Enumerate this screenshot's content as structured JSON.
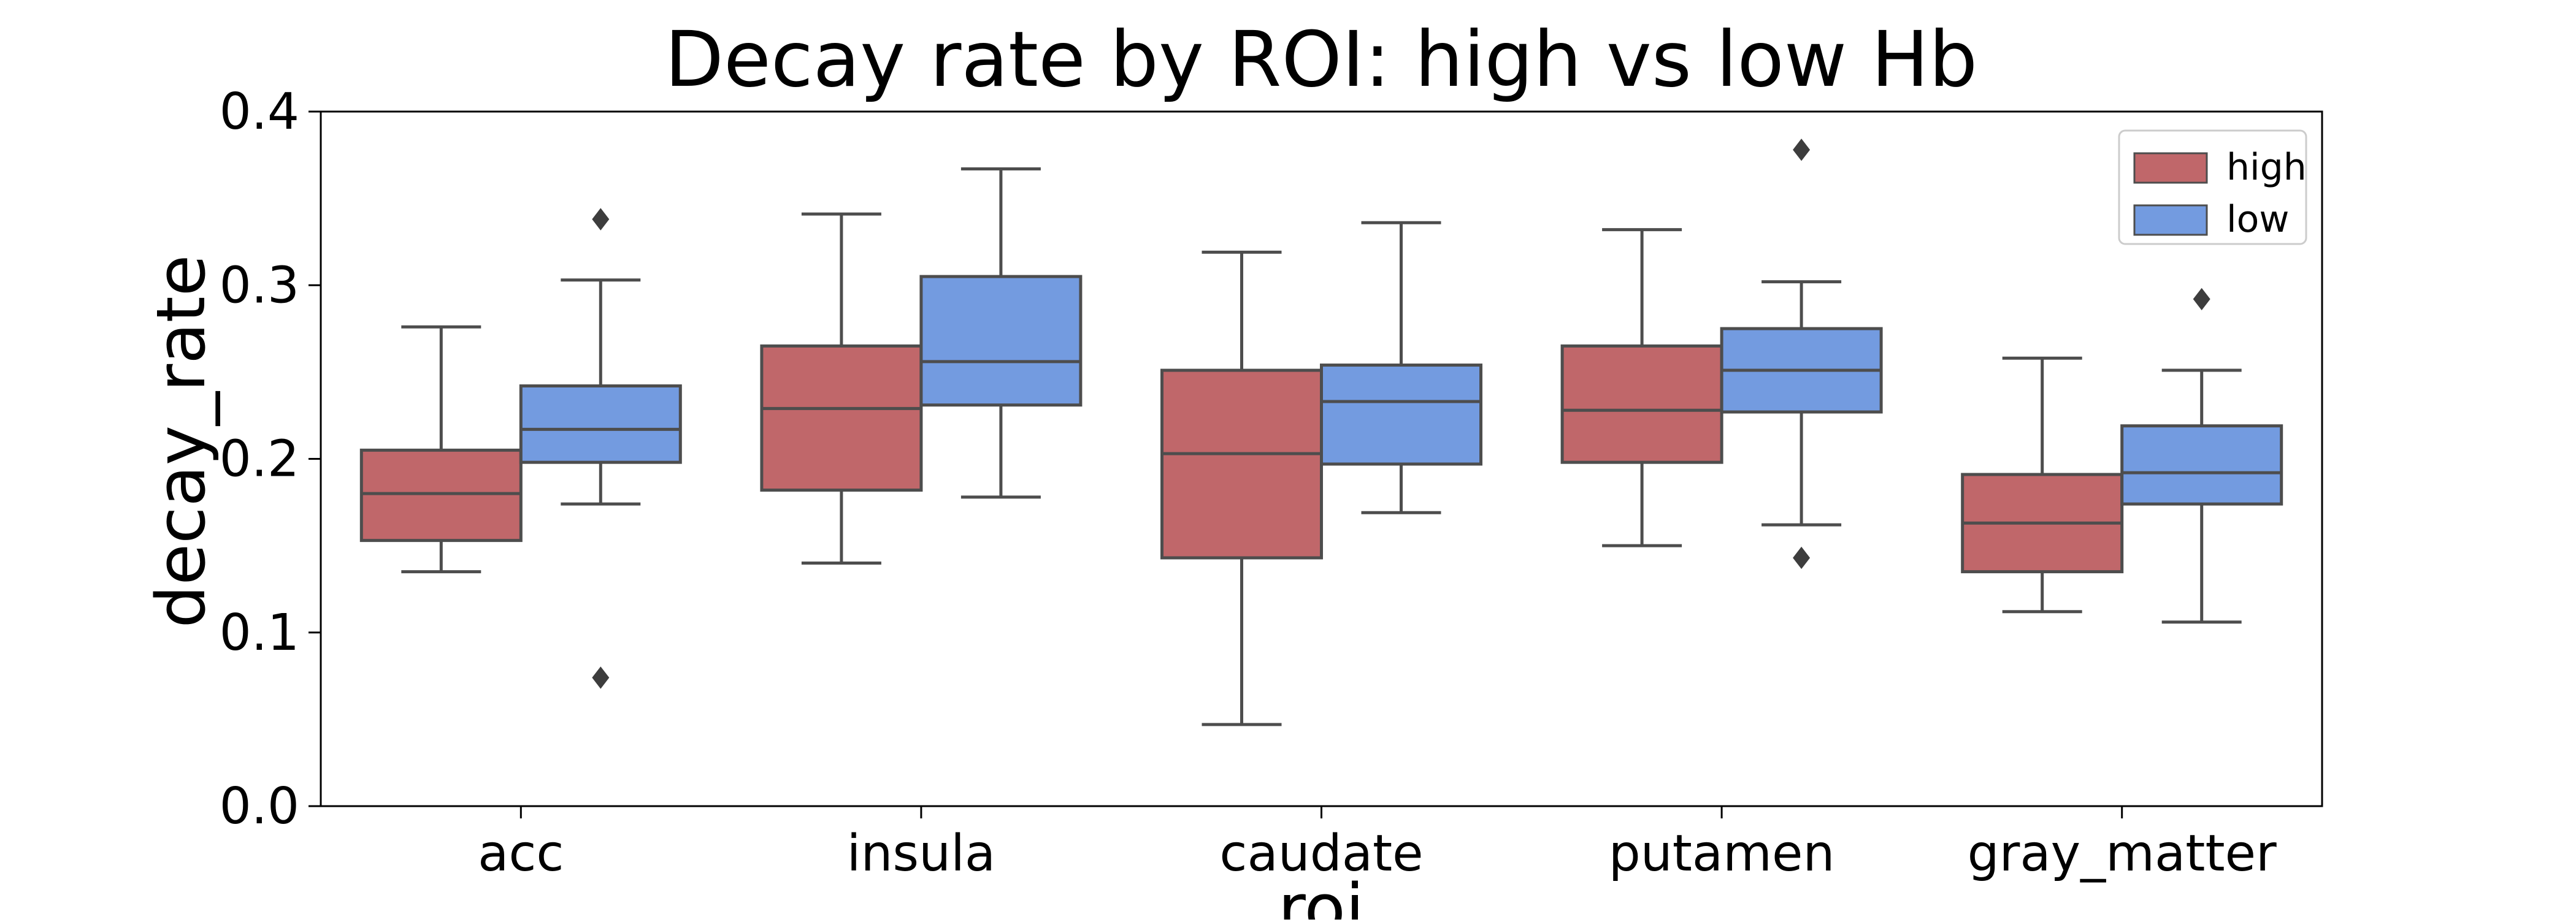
{
  "chart_data": {
    "type": "box",
    "title": "Decay rate by ROI: high vs low Hb",
    "xlabel": "roi",
    "ylabel": "decay_rate",
    "ylim": [
      0.0,
      0.4
    ],
    "yticks": [
      "0.0",
      "0.1",
      "0.2",
      "0.3",
      "0.4"
    ],
    "categories": [
      "acc",
      "insula",
      "caudate",
      "putamen",
      "gray_matter"
    ],
    "grid": false,
    "legend_position": "top-right",
    "series": [
      {
        "name": "high",
        "color": "#c0676a",
        "boxes": [
          {
            "whisker_low": 0.135,
            "q1": 0.153,
            "median": 0.18,
            "q3": 0.205,
            "whisker_high": 0.276,
            "outliers": []
          },
          {
            "whisker_low": 0.14,
            "q1": 0.182,
            "median": 0.229,
            "q3": 0.265,
            "whisker_high": 0.341,
            "outliers": []
          },
          {
            "whisker_low": 0.047,
            "q1": 0.143,
            "median": 0.203,
            "q3": 0.251,
            "whisker_high": 0.319,
            "outliers": []
          },
          {
            "whisker_low": 0.15,
            "q1": 0.198,
            "median": 0.228,
            "q3": 0.265,
            "whisker_high": 0.332,
            "outliers": []
          },
          {
            "whisker_low": 0.112,
            "q1": 0.135,
            "median": 0.163,
            "q3": 0.191,
            "whisker_high": 0.258,
            "outliers": []
          }
        ]
      },
      {
        "name": "low",
        "color": "#739be0",
        "boxes": [
          {
            "whisker_low": 0.174,
            "q1": 0.198,
            "median": 0.217,
            "q3": 0.242,
            "whisker_high": 0.303,
            "outliers": [
              0.074,
              0.338
            ]
          },
          {
            "whisker_low": 0.178,
            "q1": 0.231,
            "median": 0.256,
            "q3": 0.305,
            "whisker_high": 0.367,
            "outliers": []
          },
          {
            "whisker_low": 0.169,
            "q1": 0.197,
            "median": 0.233,
            "q3": 0.254,
            "whisker_high": 0.336,
            "outliers": []
          },
          {
            "whisker_low": 0.162,
            "q1": 0.227,
            "median": 0.251,
            "q3": 0.275,
            "whisker_high": 0.302,
            "outliers": [
              0.143,
              0.378
            ]
          },
          {
            "whisker_low": 0.106,
            "q1": 0.174,
            "median": 0.192,
            "q3": 0.219,
            "whisker_high": 0.251,
            "outliers": [
              0.292
            ]
          }
        ]
      }
    ]
  }
}
